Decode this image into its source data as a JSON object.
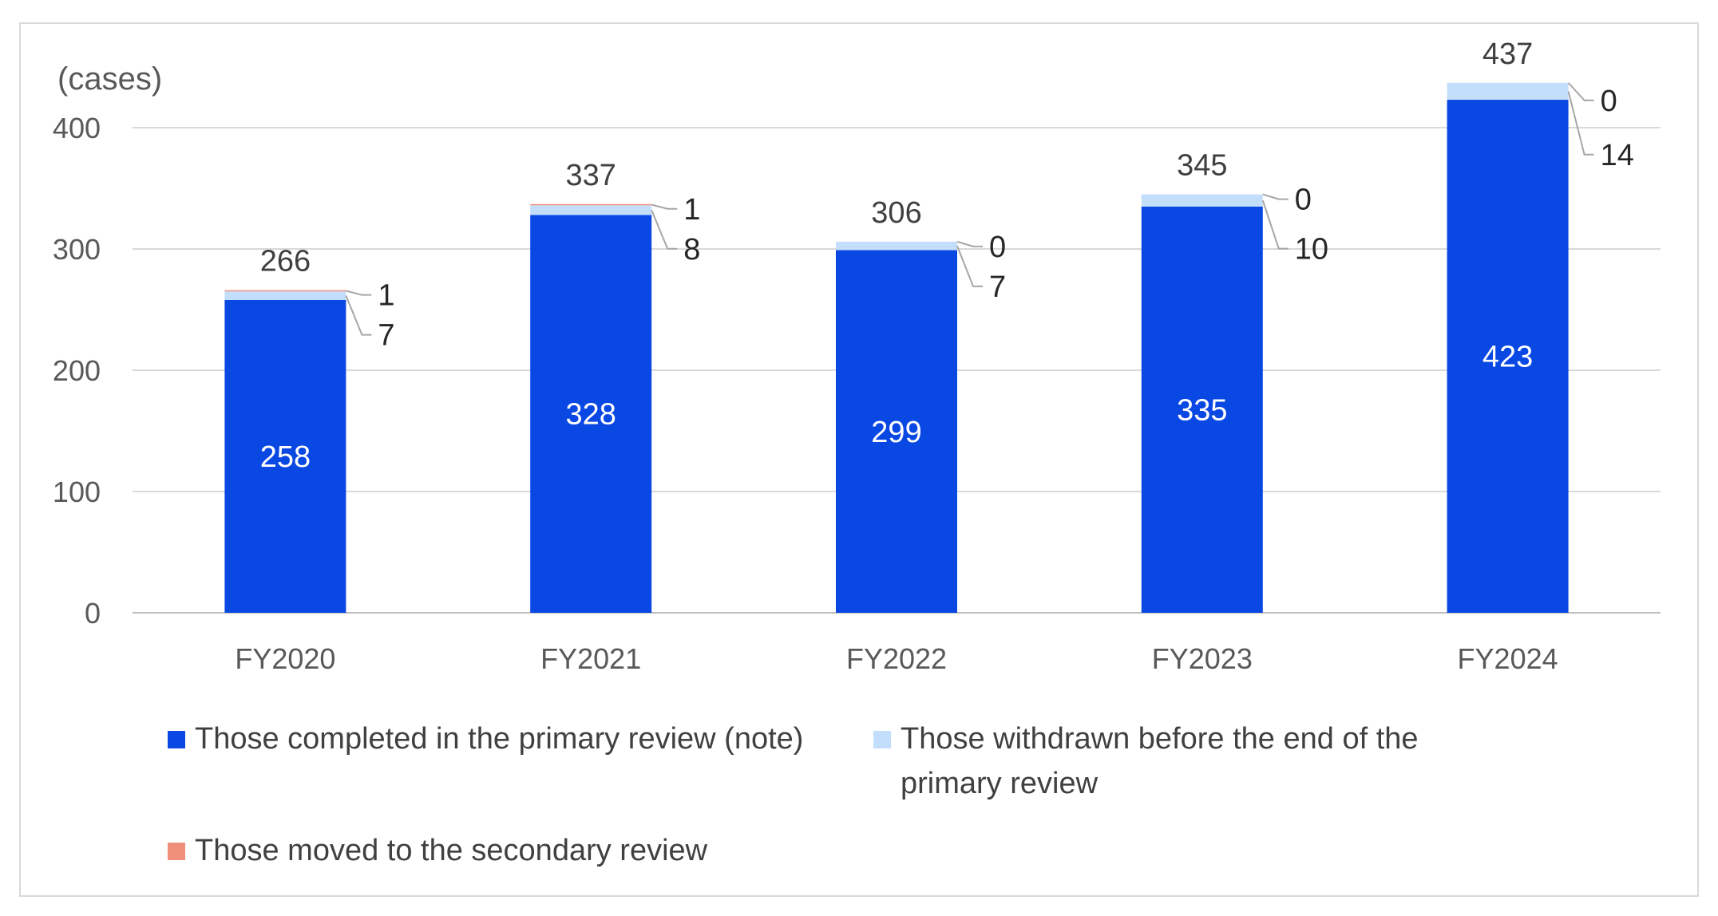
{
  "chart_data": {
    "type": "bar",
    "stacked": true,
    "unit_label": "(cases)",
    "categories": [
      "FY2020",
      "FY2021",
      "FY2022",
      "FY2023",
      "FY2024"
    ],
    "ylim": [
      0,
      400
    ],
    "yticks": [
      0,
      100,
      200,
      300,
      400
    ],
    "grid": true,
    "legend_position": "bottom",
    "totals": [
      266,
      337,
      306,
      345,
      437
    ],
    "series": [
      {
        "name": "Those completed in the primary review (note)",
        "color": "#0a48e4",
        "values": [
          258,
          328,
          299,
          335,
          423
        ]
      },
      {
        "name": "Those withdrawn before the end of the primary review",
        "color": "#c3defb",
        "values": [
          7,
          8,
          7,
          10,
          14
        ]
      },
      {
        "name": "Those moved to the secondary review",
        "color": "#f0907a",
        "values": [
          1,
          1,
          0,
          0,
          0
        ]
      }
    ]
  },
  "legend": {
    "items": [
      "Those completed in the primary review (note)",
      "Those withdrawn before the end of the",
      "primary review",
      "Those moved to the secondary review"
    ]
  }
}
